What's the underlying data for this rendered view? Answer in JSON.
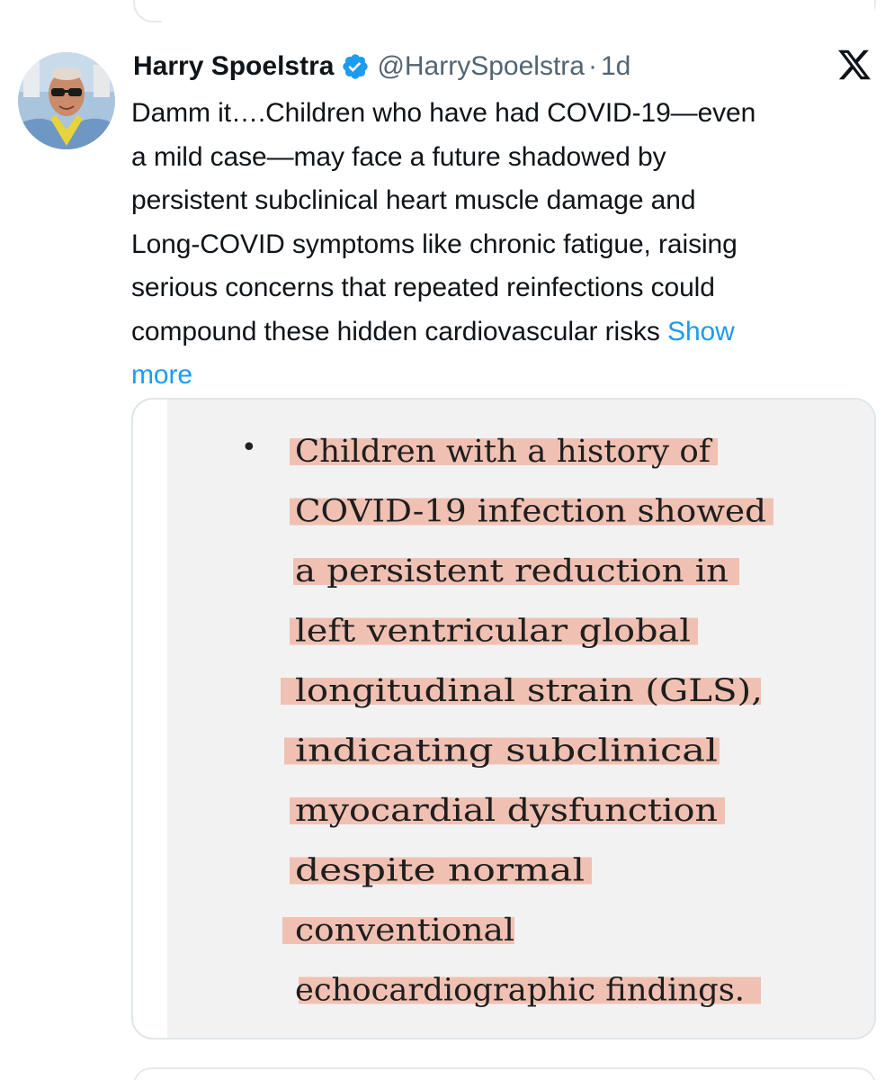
{
  "tweet": {
    "display_name": "Harry Spoelstra",
    "handle": "@HarrySpoelstra",
    "separator": "·",
    "time": "1d",
    "text_lines": [
      "Damm it….Children who have had COVID-19—even",
      "a mild case—may face a future shadowed by",
      "persistent subclinical heart muscle damage and",
      "Long-COVID symptoms like chronic fatigue, raising",
      "serious concerns that repeated reinfections could",
      "compound these hidden cardiovascular risks "
    ],
    "show_more": "Show more"
  },
  "icons": {
    "verified": "verified-badge-icon",
    "platform": "x-logo-icon"
  },
  "media": {
    "bullet": "•",
    "highlighted_lines": [
      "Children with a history of",
      "COVID-19 infection showed",
      "a persistent reduction in",
      "left ventricular global",
      "longitudinal strain (GLS),",
      "indicating subclinical",
      "myocardial dysfunction",
      "despite normal",
      "conventional",
      "echocardiographic findings."
    ]
  },
  "colors": {
    "link": "#1d9bf0",
    "verified": "#1d9bf0",
    "highlight": "#f0b8a8",
    "secondary_text": "#536471"
  }
}
